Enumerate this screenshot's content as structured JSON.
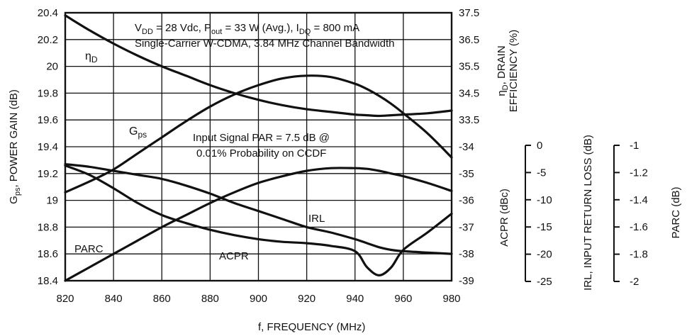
{
  "chart_data": {
    "type": "line",
    "x": [
      820,
      830,
      840,
      850,
      860,
      870,
      880,
      890,
      900,
      910,
      920,
      930,
      940,
      945,
      950,
      955,
      960,
      970,
      980
    ],
    "x_ticks": [
      "820",
      "840",
      "860",
      "880",
      "900",
      "920",
      "940",
      "960",
      "980"
    ],
    "xlim": [
      820,
      980
    ],
    "xlabel": "f, FREQUENCY (MHz)",
    "left_axis": {
      "label_main": "G",
      "label_sub": "ps",
      "label_rest": ", POWER GAIN (dB)",
      "ylim": [
        18.4,
        20.4
      ],
      "ticks": [
        "18.4",
        "18.6",
        "18.8",
        "19",
        "19.2",
        "19.4",
        "19.6",
        "19.8",
        "20",
        "20.2",
        "20.4"
      ]
    },
    "right_axis_top": {
      "label_line1_main": "η",
      "label_line1_sub": "D",
      "label_line1_rest": ", DRAIN",
      "label_line2": "EFFICIENCY (%)",
      "ylim": [
        33.5,
        37.5
      ],
      "ticks": [
        "33.5",
        "34.5",
        "35.5",
        "36.5",
        "37.5"
      ]
    },
    "right_axis_bottom": {
      "label": "ACPR (dBc)",
      "ylim": [
        -39,
        -34
      ],
      "ticks": [
        "-34",
        "-35",
        "-36",
        "-37",
        "-38",
        "-39"
      ]
    },
    "irl_axis": {
      "label": "IRL, INPUT RETURN LOSS (dB)",
      "ylim": [
        -25,
        0
      ],
      "ticks": [
        "0",
        "-5",
        "-10",
        "-15",
        "-20",
        "-25"
      ]
    },
    "parc_axis": {
      "label": "PARC (dB)",
      "ylim": [
        -2,
        -1
      ],
      "ticks": [
        "-1",
        "-1.2",
        "-1.4",
        "-1.6",
        "-1.8",
        "-2"
      ]
    },
    "series": [
      {
        "name": "ηD",
        "axis": "left",
        "values": [
          20.38,
          20.27,
          20.17,
          20.08,
          20.0,
          19.93,
          19.86,
          19.8,
          19.75,
          19.71,
          19.68,
          19.66,
          19.64,
          19.635,
          19.63,
          19.635,
          19.64,
          19.65,
          19.67
        ]
      },
      {
        "name": "Gps",
        "axis": "left",
        "values": [
          19.06,
          19.14,
          19.23,
          19.35,
          19.47,
          19.59,
          19.7,
          19.79,
          19.86,
          19.91,
          19.93,
          19.92,
          19.87,
          19.83,
          19.78,
          19.72,
          19.65,
          19.5,
          19.32
        ]
      },
      {
        "name": "PARC",
        "axis": "left",
        "values": [
          18.4,
          18.5,
          18.6,
          18.7,
          18.8,
          18.89,
          18.98,
          19.06,
          19.13,
          19.18,
          19.22,
          19.24,
          19.24,
          19.235,
          19.22,
          19.2,
          19.18,
          19.13,
          19.07
        ]
      },
      {
        "name": "ACPR",
        "axis": "left",
        "values": [
          19.27,
          19.25,
          19.22,
          19.19,
          19.16,
          19.11,
          19.05,
          18.98,
          18.92,
          18.86,
          18.8,
          18.76,
          18.71,
          18.68,
          18.65,
          18.63,
          18.62,
          18.61,
          18.6
        ]
      },
      {
        "name": "IRL",
        "axis": "left",
        "values": [
          19.26,
          19.19,
          19.09,
          18.98,
          18.89,
          18.83,
          18.78,
          18.74,
          18.71,
          18.69,
          18.68,
          18.66,
          18.62,
          18.5,
          18.44,
          18.5,
          18.63,
          18.76,
          18.9
        ]
      }
    ],
    "annotations": {
      "conditions_line1": "V_DD = 28 Vdc, P_out = 33 W (Avg.), I_DQ = 800 mA",
      "conditions_line2": "Single-Carrier W-CDMA, 3.84 MHz Channel Bandwidth",
      "par_line1": "Input Signal PAR = 7.5 dB @",
      "par_line2": "0.01% Probability on CCDF"
    },
    "grid": true
  },
  "text": {
    "cond1": {
      "v": "V",
      "v_sub": "DD",
      "a": " = 28 Vdc, P",
      "p_sub": "out",
      "b": " = 33 W (Avg.), I",
      "i_sub": "DQ",
      "c": " = 800 mA"
    },
    "cond2": "Single-Carrier W-CDMA, 3.84 MHz Channel Bandwidth",
    "par1": "Input Signal PAR = 7.5 dB @",
    "par2": "0.01% Probability on CCDF",
    "lbl_etad_main": "η",
    "lbl_etad_sub": "D",
    "lbl_gps_main": "G",
    "lbl_gps_sub": "ps",
    "lbl_parc": "PARC",
    "lbl_acpr": "ACPR",
    "lbl_irl": "IRL"
  }
}
